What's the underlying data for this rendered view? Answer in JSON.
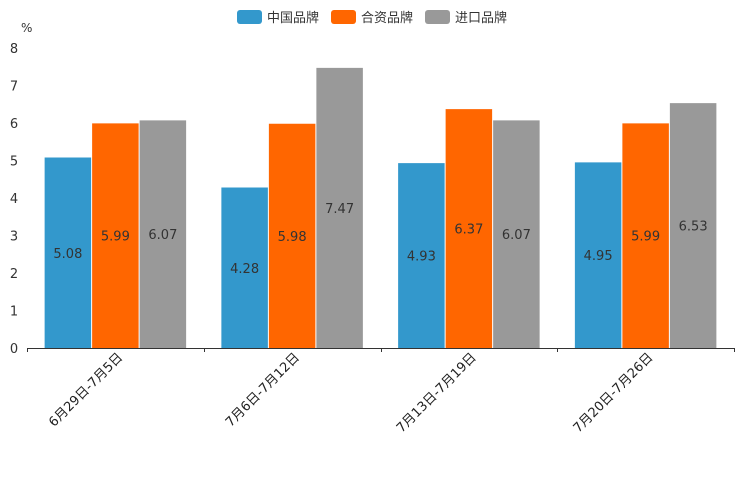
{
  "chart_data": {
    "type": "bar",
    "unit_label": "%",
    "categories": [
      "6月29日-7月5日",
      "7月6日-7月12日",
      "7月13日-7月19日",
      "7月20日-7月26日"
    ],
    "series": [
      {
        "name": "中国品牌",
        "color": "#3398CC",
        "values": [
          5.08,
          4.28,
          4.93,
          4.95
        ]
      },
      {
        "name": "合资品牌",
        "color": "#FF6600",
        "values": [
          5.99,
          5.98,
          6.37,
          5.99
        ]
      },
      {
        "name": "进口品牌",
        "color": "#999999",
        "values": [
          6.07,
          7.47,
          6.07,
          6.53
        ]
      }
    ],
    "ylim": [
      0,
      8
    ],
    "yticks": [
      0,
      1,
      2,
      3,
      4,
      5,
      6,
      7,
      8
    ],
    "legend_position": "top-center"
  }
}
